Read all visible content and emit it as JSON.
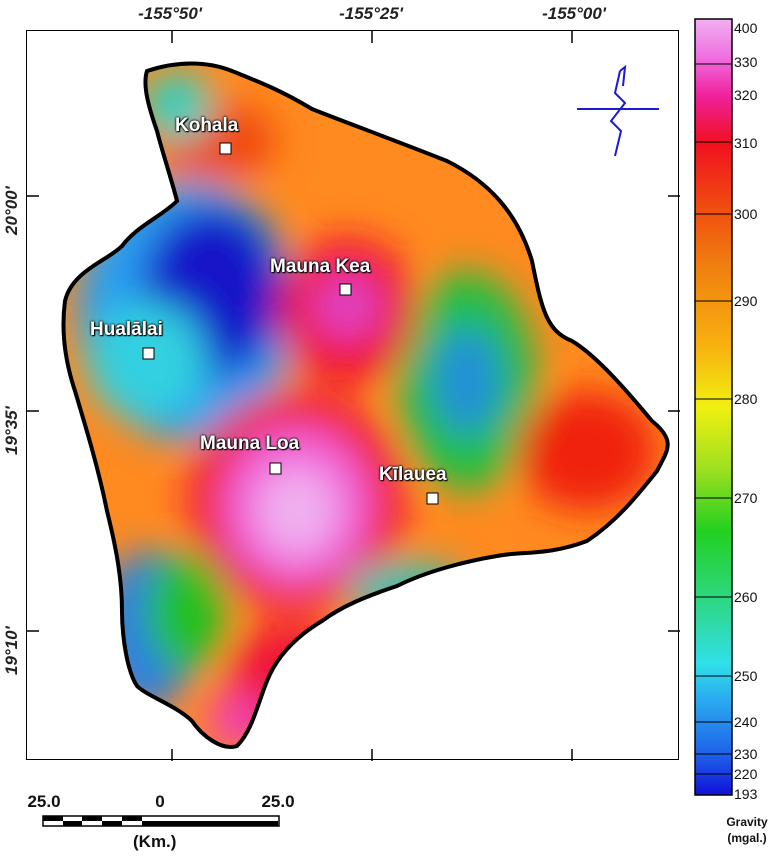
{
  "map": {
    "longitude_labels": [
      "-155°50'",
      "-155°25'",
      "-155°00'"
    ],
    "latitude_labels": [
      "20°00'",
      "19°35'",
      "19°10'"
    ],
    "places": [
      {
        "name": "Kohala"
      },
      {
        "name": "Mauna Kea"
      },
      {
        "name": "Hualālai"
      },
      {
        "name": "Mauna Loa"
      },
      {
        "name": "Kīlauea"
      }
    ],
    "north_arrow_icon": "north-arrow-icon",
    "outline_color": "#000000"
  },
  "scale_bar": {
    "left_value": "25.0",
    "center_value": "0",
    "right_value": "25.0",
    "unit": "(Km.)"
  },
  "colorbar": {
    "ticks": [
      "400",
      "330",
      "320",
      "310",
      "300",
      "290",
      "280",
      "270",
      "260",
      "250",
      "240",
      "230",
      "220",
      "193"
    ],
    "title_line1": "Gravity",
    "title_line2": "(mgal.)",
    "colors": [
      "#1010d8",
      "#1f5fe8",
      "#2aa8f0",
      "#30e0e8",
      "#2fd890",
      "#22d020",
      "#9ee020",
      "#f0f010",
      "#f8b010",
      "#f08010",
      "#f04a10",
      "#f01020",
      "#f0209a",
      "#f06ee0",
      "#f0b0f0"
    ]
  }
}
